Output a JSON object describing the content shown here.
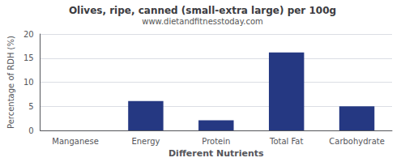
{
  "chart_data": {
    "type": "bar",
    "title": "Olives, ripe, canned (small-extra large) per 100g",
    "subtitle": "www.dietandfitnesstoday.com",
    "categories": [
      "Manganese",
      "Energy",
      "Protein",
      "Total Fat",
      "Carbohydrate"
    ],
    "values": [
      0,
      6.1,
      2.1,
      16.2,
      5.0
    ],
    "color": "#253882",
    "xlabel": "Different Nutrients",
    "ylabel": "Percentage of RDH (%)",
    "ylim": [
      0,
      20
    ],
    "yticks": [
      0,
      5,
      10,
      15,
      20
    ],
    "grid": true
  }
}
